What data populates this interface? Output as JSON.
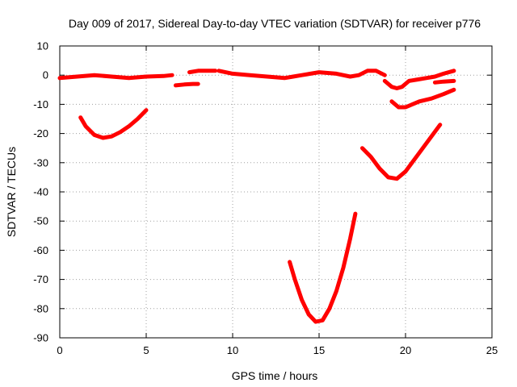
{
  "chart_data": {
    "type": "line",
    "title": "Day 009 of 2017, Sidereal Day-to-day VTEC variation (SDTVAR) for receiver p776",
    "xlabel": "GPS time / hours",
    "ylabel": "SDTVAR / TECUs",
    "xlim": [
      0,
      25
    ],
    "ylim": [
      -90,
      10
    ],
    "xticks": [
      0,
      5,
      10,
      15,
      20,
      25
    ],
    "yticks": [
      10,
      0,
      -10,
      -20,
      -30,
      -40,
      -50,
      -60,
      -70,
      -80,
      -90
    ],
    "grid": true,
    "legend": "none",
    "color": "#ff0000",
    "series": [
      {
        "name": "segment-1",
        "x": [
          0,
          1,
          2,
          3,
          4,
          5,
          6,
          6.5
        ],
        "y": [
          -1,
          -0.5,
          0,
          -0.5,
          -1,
          -0.5,
          -0.3,
          0
        ]
      },
      {
        "name": "segment-2",
        "x": [
          6.7,
          7.2,
          7.7,
          8.0
        ],
        "y": [
          -3.5,
          -3.2,
          -3,
          -3
        ]
      },
      {
        "name": "segment-3",
        "x": [
          7.5,
          8.0,
          8.5,
          9.0
        ],
        "y": [
          1,
          1.5,
          1.5,
          1.5
        ]
      },
      {
        "name": "segment-4",
        "x": [
          9.2,
          10,
          11,
          12,
          13,
          13.5,
          14,
          15,
          16,
          16.8,
          17.3,
          17.8,
          18.3,
          18.8
        ],
        "y": [
          1.5,
          0.5,
          0,
          -0.5,
          -1,
          -0.5,
          0,
          1,
          0.5,
          -0.5,
          0,
          1.5,
          1.5,
          0
        ]
      },
      {
        "name": "segment-5",
        "x": [
          18.8,
          19.2,
          19.5,
          19.8,
          20.2,
          20.7,
          21.2,
          21.7,
          22.2,
          22.8
        ],
        "y": [
          -2,
          -4,
          -4.5,
          -4,
          -2,
          -1.5,
          -1,
          -0.5,
          0.5,
          1.5
        ]
      },
      {
        "name": "segment-6",
        "x": [
          21.7,
          22.2,
          22.8
        ],
        "y": [
          -2.5,
          -2.2,
          -2
        ]
      },
      {
        "name": "segment-7",
        "x": [
          19.2,
          19.6,
          20.0,
          20.8,
          21.5,
          22.2,
          22.8
        ],
        "y": [
          -9,
          -11,
          -11,
          -9,
          -8,
          -6.5,
          -5
        ]
      },
      {
        "name": "segment-8",
        "x": [
          1.2,
          1.5,
          2.0,
          2.5,
          3.0,
          3.5,
          4.0,
          4.5,
          5.0
        ],
        "y": [
          -14.5,
          -17.5,
          -20.5,
          -21.5,
          -21,
          -19.5,
          -17.5,
          -15,
          -12
        ]
      },
      {
        "name": "segment-9",
        "x": [
          17.5,
          18.0,
          18.5,
          19.0,
          19.5,
          20.0,
          20.5,
          21.0,
          21.5,
          22.0
        ],
        "y": [
          -25,
          -28,
          -32,
          -35,
          -35.5,
          -33,
          -29,
          -25,
          -21,
          -17
        ]
      },
      {
        "name": "segment-10",
        "x": [
          13.3,
          13.6,
          14.0,
          14.4,
          14.8,
          15.2,
          15.6,
          16.0,
          16.4,
          16.8,
          17.1
        ],
        "y": [
          -64,
          -70,
          -77,
          -82,
          -84.5,
          -84,
          -80,
          -74,
          -66,
          -56,
          -47.5
        ]
      }
    ]
  }
}
